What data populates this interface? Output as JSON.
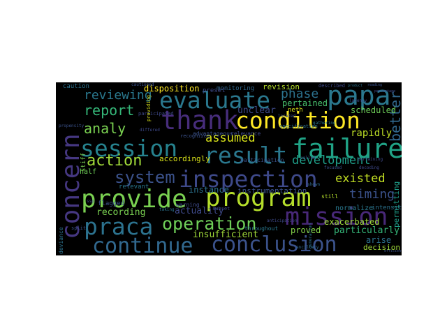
{
  "words": [
    {
      "text": "concern",
      "color": "#453781",
      "vertical": true
    },
    {
      "text": "evaluate",
      "color": "#2a788e",
      "vertical": false
    },
    {
      "text": "papa",
      "color": "#2a788e",
      "vertical": false
    },
    {
      "text": "thank",
      "color": "#472d7b",
      "vertical": false
    },
    {
      "text": "condition",
      "color": "#fde725",
      "vertical": false
    },
    {
      "text": "session",
      "color": "#26828e",
      "vertical": false
    },
    {
      "text": "result",
      "color": "#2a788e",
      "vertical": false
    },
    {
      "text": "failure",
      "color": "#20a386",
      "vertical": false
    },
    {
      "text": "inspection",
      "color": "#3e4989",
      "vertical": false
    },
    {
      "text": "provide",
      "color": "#7ad151",
      "vertical": false
    },
    {
      "text": "program",
      "color": "#b5de2b",
      "vertical": false
    },
    {
      "text": "mission",
      "color": "#482878",
      "vertical": false
    },
    {
      "text": "praca",
      "color": "#2c728e",
      "vertical": false
    },
    {
      "text": "operation",
      "color": "#6ece58",
      "vertical": false
    },
    {
      "text": "continue",
      "color": "#31688e",
      "vertical": false
    },
    {
      "text": "conclusion",
      "color": "#3b528b",
      "vertical": false
    },
    {
      "text": "system",
      "color": "#3b528b",
      "vertical": false
    },
    {
      "text": "action",
      "color": "#a0da39",
      "vertical": false
    },
    {
      "text": "report",
      "color": "#35b779",
      "vertical": false
    },
    {
      "text": "analy",
      "color": "#7ad151",
      "vertical": false
    },
    {
      "text": "reviewing",
      "color": "#2a788e",
      "vertical": false
    },
    {
      "text": "assumed",
      "color": "#d8e219",
      "vertical": false
    },
    {
      "text": "development",
      "color": "#1f9e89",
      "vertical": false
    },
    {
      "text": "existed",
      "color": "#c2df23",
      "vertical": false
    },
    {
      "text": "timing",
      "color": "#3b528b",
      "vertical": false
    },
    {
      "text": "better",
      "color": "#31688e",
      "vertical": true
    },
    {
      "text": "rapidly",
      "color": "#bddf26",
      "vertical": false
    },
    {
      "text": "phase",
      "color": "#2c728e",
      "vertical": false
    },
    {
      "text": "pertained",
      "color": "#48c16e",
      "vertical": false
    },
    {
      "text": "scheduled",
      "color": "#6ece58",
      "vertical": false
    },
    {
      "text": "disposition",
      "color": "#fde725",
      "vertical": false
    },
    {
      "text": "revision",
      "color": "#b5de2b",
      "vertical": false
    },
    {
      "text": "monitoring",
      "color": "#31688e",
      "vertical": false
    },
    {
      "text": "unclear",
      "color": "#3e4989",
      "vertical": false
    },
    {
      "text": "accordingly",
      "color": "#d8e219",
      "vertical": false
    },
    {
      "text": "recording",
      "color": "#7ad151",
      "vertical": false
    },
    {
      "text": "actuality",
      "color": "#3e4989",
      "vertical": false
    },
    {
      "text": "instance",
      "color": "#2c728e",
      "vertical": false
    },
    {
      "text": "insufficient",
      "color": "#a0da39",
      "vertical": false
    },
    {
      "text": "proved",
      "color": "#86d549",
      "vertical": false
    },
    {
      "text": "particularly",
      "color": "#35b779",
      "vertical": false
    },
    {
      "text": "exacerbated",
      "color": "#9fda3a",
      "vertical": false
    },
    {
      "text": "instrumentation",
      "color": "#3b528b",
      "vertical": false
    },
    {
      "text": "arise",
      "color": "#2c728e",
      "vertical": false
    },
    {
      "text": "decision",
      "color": "#a0da39",
      "vertical": false
    },
    {
      "text": "permitting",
      "color": "#1f9e89",
      "vertical": true
    },
    {
      "text": "flagged",
      "color": "#3b528b",
      "vertical": false
    },
    {
      "text": "relevant",
      "color": "#2a788e",
      "vertical": false
    },
    {
      "text": "warning",
      "color": "#3e4989",
      "vertical": false
    },
    {
      "text": "half",
      "color": "#6ece58",
      "vertical": false
    },
    {
      "text": "normalize",
      "color": "#2a788e",
      "vertical": false
    },
    {
      "text": "intensity",
      "color": "#2c728e",
      "vertical": false
    },
    {
      "text": "caution",
      "color": "#2c728e",
      "vertical": false
    },
    {
      "text": "neth",
      "color": "#d8e219",
      "vertical": false
    },
    {
      "text": "preset",
      "color": "#3e4989",
      "vertical": false
    },
    {
      "text": "stiff",
      "color": "#7ad151",
      "vertical": true
    },
    {
      "text": "still",
      "color": "#b5de2b",
      "vertical": false
    },
    {
      "text": "throughout",
      "color": "#2a788e",
      "vertical": false
    },
    {
      "text": "participation",
      "color": "#3b528b",
      "vertical": false
    },
    {
      "text": "described",
      "color": "#3e4989",
      "vertical": false
    },
    {
      "text": "advantageous",
      "color": "#3b528b",
      "vertical": false
    },
    {
      "text": "relevance",
      "color": "#3e4989",
      "vertical": false
    },
    {
      "text": "cautioned",
      "color": "#3b528b",
      "vertical": false
    },
    {
      "text": "subset",
      "color": "#3e4989",
      "vertical": false
    },
    {
      "text": "recognized",
      "color": "#3b528b",
      "vertical": false
    },
    {
      "text": "deviance",
      "color": "#2c728e",
      "vertical": true
    },
    {
      "text": "specification",
      "color": "#2c728e",
      "vertical": false
    },
    {
      "text": "participated",
      "color": "#3e4989",
      "vertical": false
    },
    {
      "text": "propensity",
      "color": "#3b528b",
      "vertical": false
    },
    {
      "text": "gathering",
      "color": "#2a788e",
      "vertical": false
    },
    {
      "text": "located",
      "color": "#3b528b",
      "vertical": false
    },
    {
      "text": "anticipation",
      "color": "#3e4989",
      "vertical": false
    },
    {
      "text": "ancillary",
      "color": "#31688e",
      "vertical": false
    },
    {
      "text": "latency",
      "color": "#3e4989",
      "vertical": false
    },
    {
      "text": "product",
      "color": "#2c728e",
      "vertical": false
    },
    {
      "text": "reading",
      "color": "#3b528b",
      "vertical": false
    },
    {
      "text": "percentage",
      "color": "#3e4989",
      "vertical": false
    },
    {
      "text": "efficient",
      "color": "#3b528b",
      "vertical": false
    },
    {
      "text": "providing",
      "color": "#d8e219",
      "vertical": true
    },
    {
      "text": "differed",
      "color": "#3e4989",
      "vertical": false
    },
    {
      "text": "taking",
      "color": "#2c728e",
      "vertical": false
    },
    {
      "text": "split",
      "color": "#3b528b",
      "vertical": false
    },
    {
      "text": "ssp",
      "color": "#3e4989",
      "vertical": false
    },
    {
      "text": "shown",
      "color": "#31688e",
      "vertical": false
    },
    {
      "text": "called",
      "color": "#3b528b",
      "vertical": false
    },
    {
      "text": "pertaining",
      "color": "#3e4989",
      "vertical": false
    },
    {
      "text": "generation",
      "color": "#2c728e",
      "vertical": true
    },
    {
      "text": "focused",
      "color": "#3b528b",
      "vertical": false
    },
    {
      "text": "decoding",
      "color": "#3e4989",
      "vertical": false
    }
  ]
}
